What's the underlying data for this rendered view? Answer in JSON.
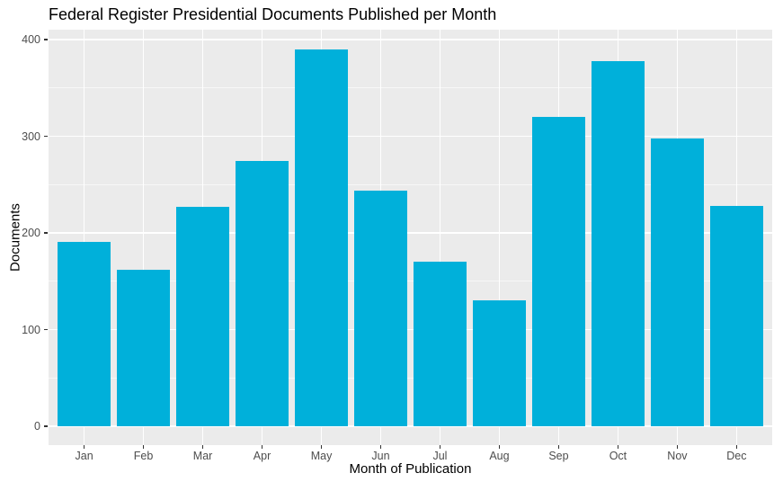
{
  "chart_data": {
    "type": "bar",
    "title": "Federal Register Presidential Documents Published per Month",
    "xlabel": "Month of Publication",
    "ylabel": "Documents",
    "categories": [
      "Jan",
      "Feb",
      "Mar",
      "Apr",
      "May",
      "Jun",
      "Jul",
      "Aug",
      "Sep",
      "Oct",
      "Nov",
      "Dec"
    ],
    "values": [
      191,
      162,
      227,
      275,
      390,
      244,
      170,
      130,
      320,
      378,
      298,
      228
    ],
    "ylim": [
      0,
      400
    ],
    "yticks": [
      0,
      100,
      200,
      300,
      400
    ],
    "yticks_minor": [
      50,
      150,
      250,
      350
    ],
    "grid": "on",
    "legend": "none",
    "colors": {
      "bar": "#00B0DA",
      "panel_background": "#EBEBEB",
      "gridline": "#FFFFFF",
      "tick_label": "#4D4D4D",
      "tick_mark": "#333333",
      "title": "#000000",
      "axis_title": "#000000",
      "figure_background": "#FFFFFF"
    }
  }
}
